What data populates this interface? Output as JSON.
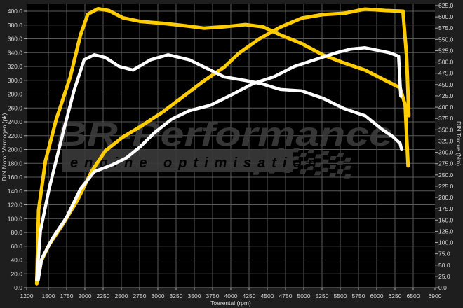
{
  "chart_data": {
    "type": "line",
    "xlabel": "Toerental (rpm)",
    "ylabel_left": "DIN Motor Vermogen (pk)",
    "ylabel_right": "DIN Torque (Nm)",
    "xlim": [
      1200,
      6900
    ],
    "ylim_left": [
      0,
      400
    ],
    "ylim_right": [
      0,
      625
    ],
    "x_ticks": [
      1200,
      1500,
      1750,
      2000,
      2250,
      2500,
      2750,
      3000,
      3250,
      3500,
      3750,
      4000,
      4250,
      4500,
      4750,
      5000,
      5250,
      5500,
      5750,
      6000,
      6250,
      6500,
      6900
    ],
    "y_left_ticks": [
      "0.0",
      "20.0",
      "40.0",
      "60.0",
      "80.0",
      "100.0",
      "120.0",
      "140.0",
      "160.0",
      "180.0",
      "200.0",
      "220.0",
      "240.0",
      "260.0",
      "280.0",
      "300.0",
      "320.0",
      "340.0",
      "360.0",
      "380.0",
      "400.0"
    ],
    "y_right_ticks": [
      "0.0",
      "25.0",
      "50.0",
      "75.0",
      "100.0",
      "125.0",
      "150.0",
      "175.0",
      "200.0",
      "225.0",
      "250.0",
      "275.0",
      "300.0",
      "325.0",
      "350.0",
      "375.0",
      "400.0",
      "425.0",
      "450.0",
      "475.0",
      "500.0",
      "525.0",
      "550.0",
      "575.0",
      "600.0",
      "625.0"
    ],
    "grid": true,
    "watermark": {
      "brand": "BR-Performance",
      "tagline": "engine optimisation"
    },
    "series": [
      {
        "axis": "right",
        "color": "#ffcc00",
        "points": [
          [
            1340,
            9
          ],
          [
            1365,
            172
          ],
          [
            1460,
            281
          ],
          [
            1610,
            374
          ],
          [
            1800,
            467
          ],
          [
            1940,
            560
          ],
          [
            2040,
            606
          ],
          [
            2180,
            618
          ],
          [
            2330,
            614
          ],
          [
            2520,
            598
          ],
          [
            2760,
            590
          ],
          [
            3050,
            586
          ],
          [
            3340,
            581
          ],
          [
            3630,
            575
          ],
          [
            3910,
            578
          ],
          [
            4200,
            583
          ],
          [
            4440,
            578
          ],
          [
            4680,
            560
          ],
          [
            4970,
            541
          ],
          [
            5260,
            516
          ],
          [
            5550,
            498
          ],
          [
            5840,
            482
          ],
          [
            6120,
            459
          ],
          [
            6320,
            443
          ],
          [
            6390,
            405
          ],
          [
            6430,
            270
          ]
        ]
      },
      {
        "axis": "left",
        "color": "#ffcc00",
        "points": [
          [
            1340,
            6
          ],
          [
            1390,
            36
          ],
          [
            1510,
            62
          ],
          [
            1700,
            92
          ],
          [
            1900,
            127
          ],
          [
            2090,
            168
          ],
          [
            2280,
            198
          ],
          [
            2520,
            218
          ],
          [
            2760,
            233
          ],
          [
            3050,
            253
          ],
          [
            3340,
            276
          ],
          [
            3630,
            299
          ],
          [
            3910,
            319
          ],
          [
            4110,
            339
          ],
          [
            4390,
            360
          ],
          [
            4680,
            377
          ],
          [
            4970,
            390
          ],
          [
            5260,
            395
          ],
          [
            5550,
            397
          ],
          [
            5840,
            403
          ],
          [
            6120,
            401
          ],
          [
            6360,
            400
          ],
          [
            6410,
            335
          ],
          [
            6440,
            249
          ]
        ]
      },
      {
        "axis": "right",
        "color": "#ffffff",
        "points": [
          [
            1340,
            17
          ],
          [
            1390,
            126
          ],
          [
            1510,
            219
          ],
          [
            1700,
            343
          ],
          [
            1850,
            436
          ],
          [
            1990,
            505
          ],
          [
            2130,
            516
          ],
          [
            2280,
            510
          ],
          [
            2470,
            490
          ],
          [
            2660,
            482
          ],
          [
            2900,
            505
          ],
          [
            3140,
            516
          ],
          [
            3430,
            505
          ],
          [
            3720,
            482
          ],
          [
            3910,
            467
          ],
          [
            4200,
            459
          ],
          [
            4440,
            451
          ],
          [
            4680,
            439
          ],
          [
            4970,
            436
          ],
          [
            5260,
            420
          ],
          [
            5550,
            397
          ],
          [
            5840,
            381
          ],
          [
            6080,
            350
          ],
          [
            6220,
            335
          ],
          [
            6320,
            320
          ],
          [
            6340,
            307
          ]
        ]
      },
      {
        "axis": "left",
        "color": "#ffffff",
        "points": [
          [
            1360,
            11
          ],
          [
            1410,
            42
          ],
          [
            1560,
            72
          ],
          [
            1750,
            102
          ],
          [
            1940,
            143
          ],
          [
            2130,
            168
          ],
          [
            2380,
            178
          ],
          [
            2570,
            188
          ],
          [
            2760,
            204
          ],
          [
            2950,
            224
          ],
          [
            3190,
            244
          ],
          [
            3430,
            256
          ],
          [
            3720,
            264
          ],
          [
            4010,
            279
          ],
          [
            4300,
            295
          ],
          [
            4590,
            305
          ],
          [
            4870,
            320
          ],
          [
            5160,
            330
          ],
          [
            5450,
            340
          ],
          [
            5640,
            345
          ],
          [
            5840,
            347
          ],
          [
            6030,
            343
          ],
          [
            6170,
            340
          ],
          [
            6300,
            335
          ],
          [
            6330,
            277
          ]
        ]
      }
    ]
  }
}
